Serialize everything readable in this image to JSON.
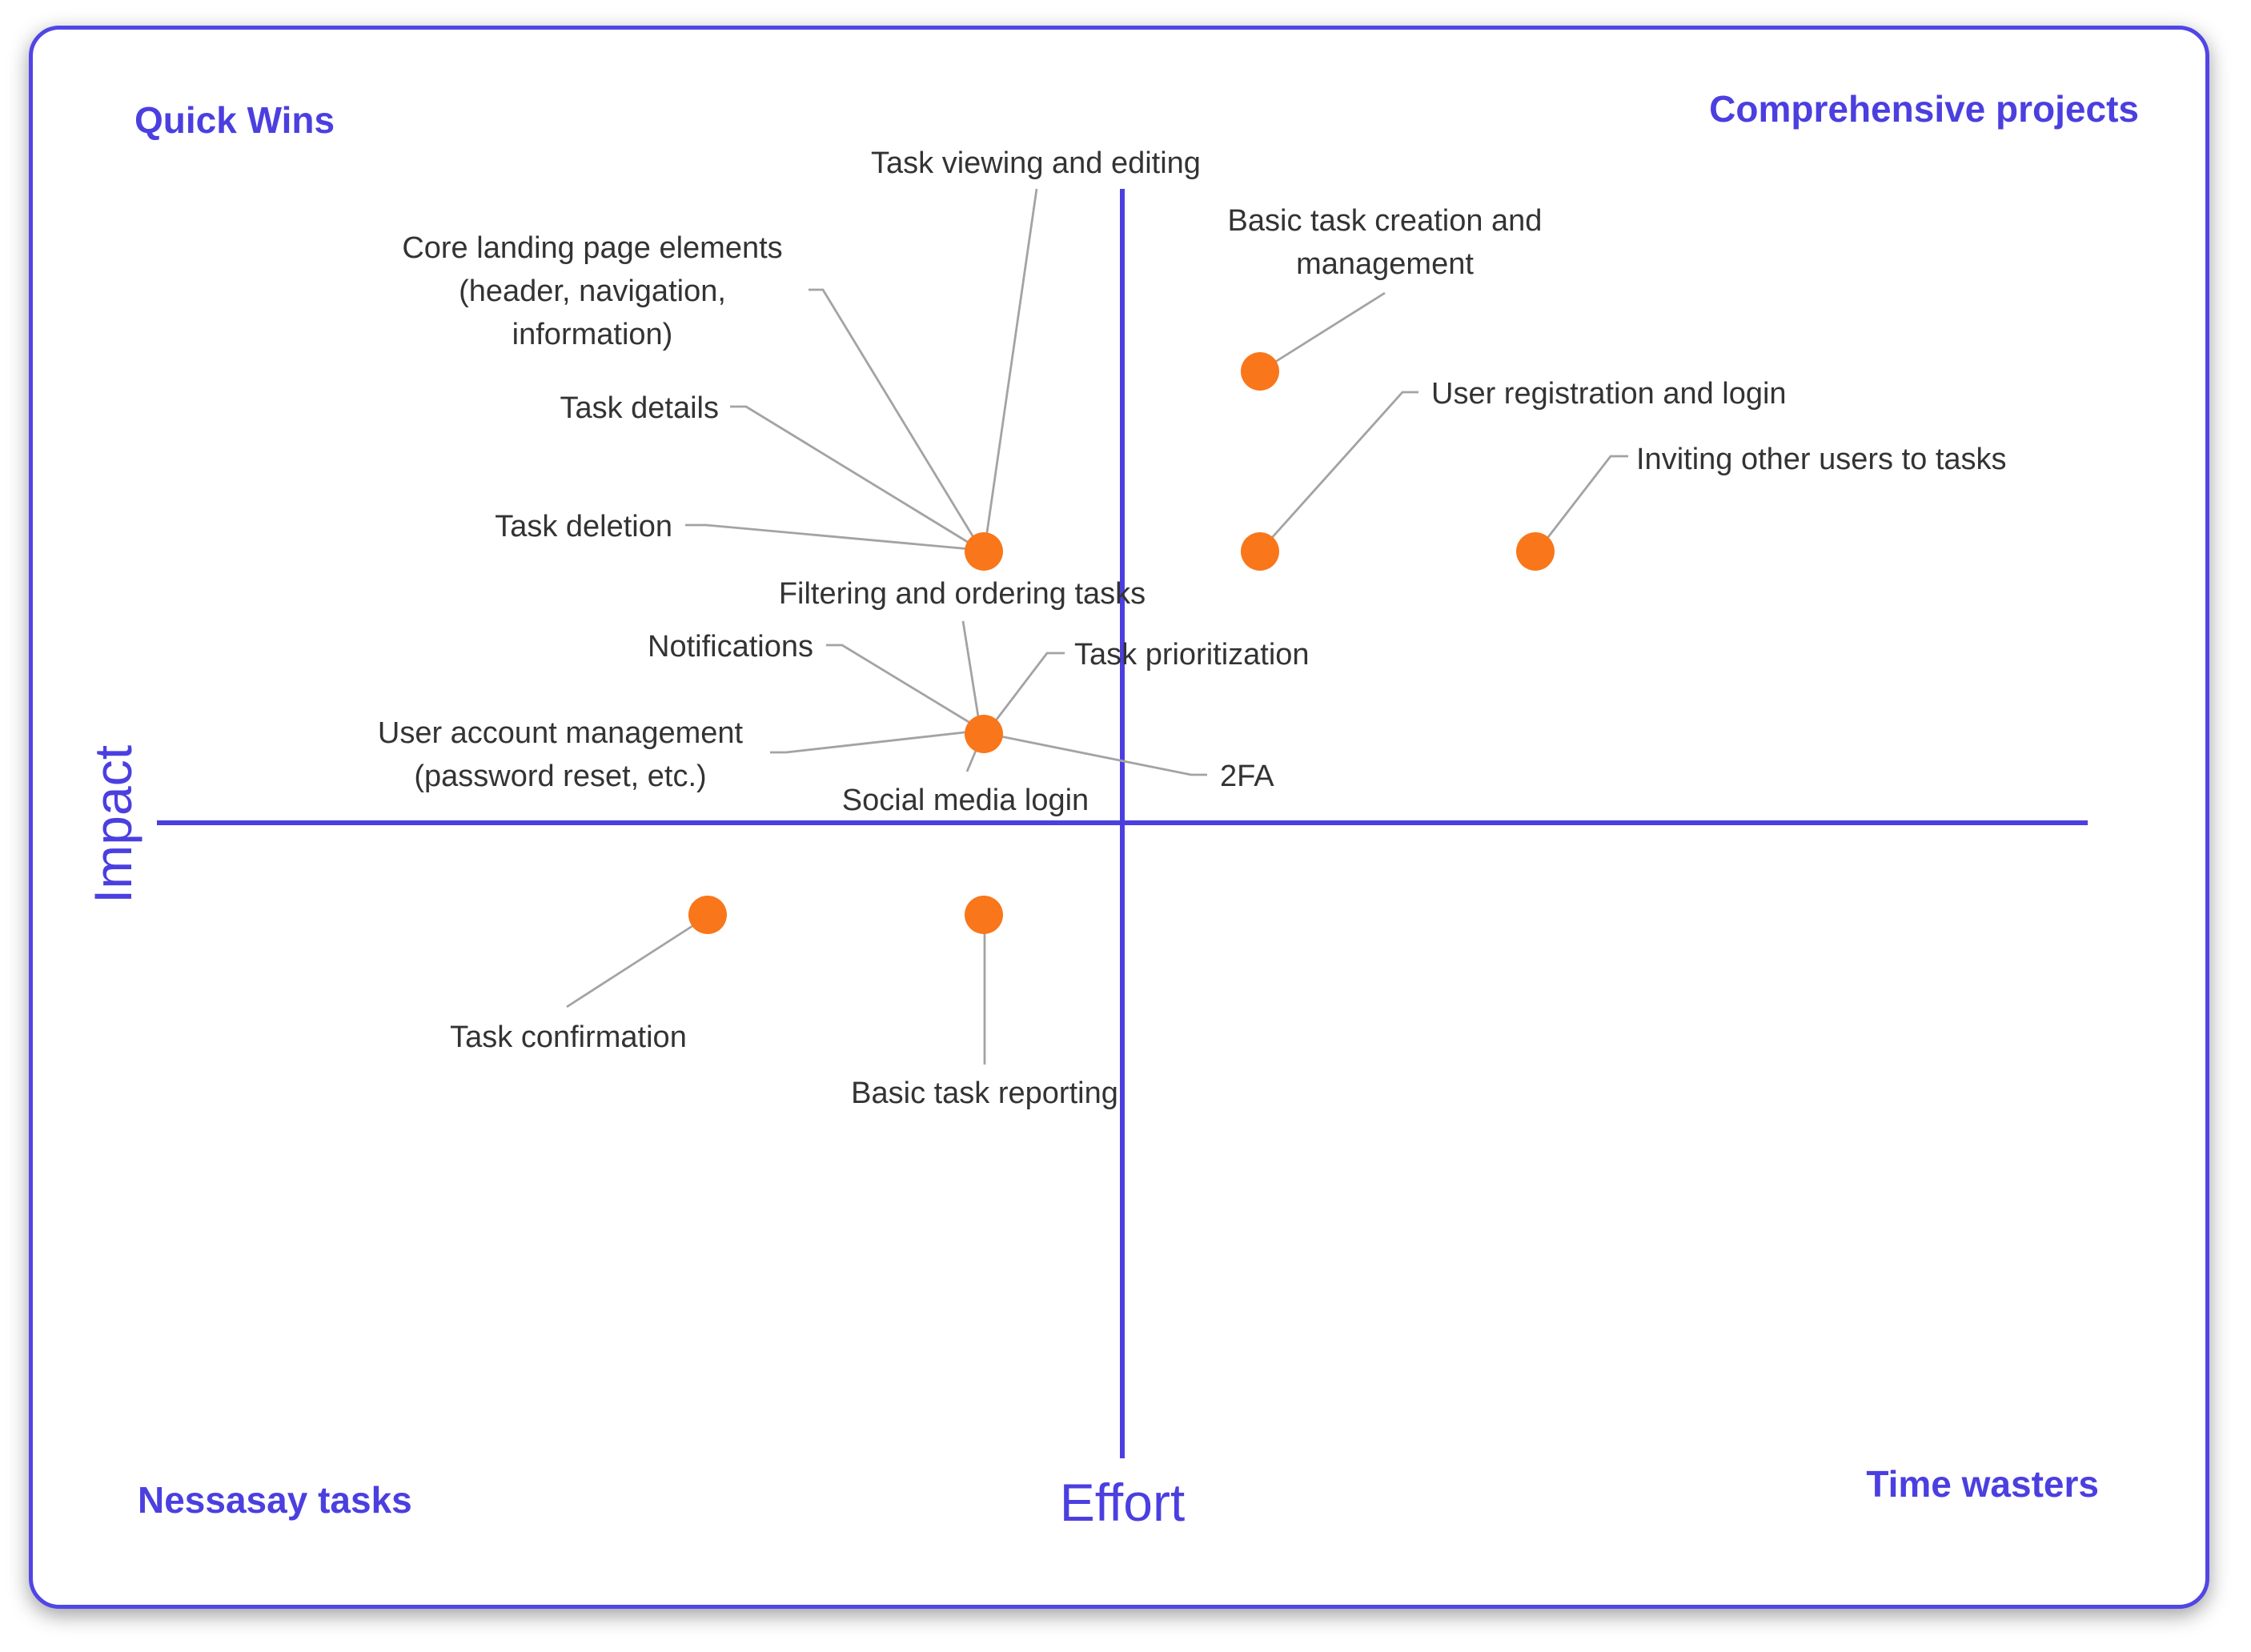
{
  "colors": {
    "accent": "#4b3fe0",
    "dot": "#f9761a",
    "leader": "#a3a3a3",
    "text": "#333333"
  },
  "quadrants": {
    "top_left": "Quick Wins",
    "top_right": "Comprehensive projects",
    "bottom_left": "Nessasay tasks",
    "bottom_right": "Time wasters"
  },
  "axes": {
    "y_label": "Impact",
    "x_label": "Effort"
  },
  "items": {
    "task_viewing": "Task viewing and editing",
    "core_landing_1": "Core landing page elements",
    "core_landing_2": "(header, navigation,",
    "core_landing_3": "information)",
    "task_details": "Task details",
    "task_deletion": "Task deletion",
    "basic_task_creation_1": "Basic task creation and",
    "basic_task_creation_2": "management",
    "user_registration": "User registration and login",
    "inviting_users": "Inviting other users to tasks",
    "filtering": "Filtering and ordering tasks",
    "notifications": "Notifications",
    "task_prioritization": "Task prioritization",
    "user_account_1": "User account management",
    "user_account_2": "(password reset, etc.)",
    "two_fa": "2FA",
    "social_login": "Social media login",
    "task_confirmation": "Task confirmation",
    "basic_reporting": "Basic task reporting"
  }
}
